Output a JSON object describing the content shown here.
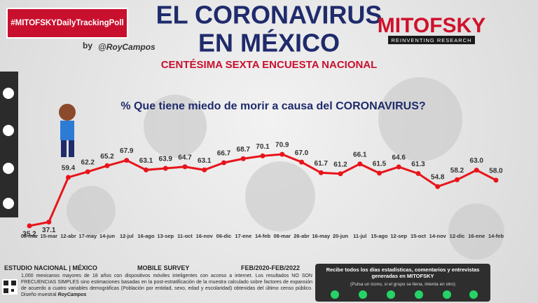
{
  "header": {
    "hashtag": "#MITOFSKYDailyTrackingPoll",
    "by": "by",
    "author": "@RoyCampos",
    "title_line1": "EL CORONAVIRUS",
    "title_line2": "EN MÉXICO",
    "subtitle": "CENTÉSIMA SEXTA ENCUESTA NACIONAL",
    "brand": "MITOFSKY",
    "brand_tagline": "REINVENTING RESEARCH"
  },
  "chart_data": {
    "type": "line",
    "title": "% Que tiene miedo de morir a causa del CORONAVIRUS?",
    "categories": [
      "08-mar",
      "15-mar",
      "12-abr",
      "17-may",
      "14-jun",
      "12-jul",
      "16-ago",
      "13-sep",
      "11-oct",
      "16-nov",
      "06-dic",
      "17-ene",
      "14-feb",
      "08-mar",
      "26-abr",
      "16-may",
      "20-jun",
      "11-jul",
      "15-ago",
      "12-sep",
      "15-oct",
      "14-nov",
      "12-dic",
      "16-ene",
      "14-feb"
    ],
    "values": [
      35.2,
      37.1,
      59.4,
      62.2,
      65.2,
      67.9,
      63.1,
      63.9,
      64.7,
      63.1,
      66.7,
      68.7,
      70.1,
      70.9,
      67.0,
      61.7,
      61.2,
      66.1,
      61.5,
      64.6,
      61.3,
      54.8,
      58.2,
      63.0,
      58.0
    ],
    "value_labels": [
      "35.2",
      "37.1",
      "59.4",
      "62.2",
      "65.2",
      "67.9",
      "63.1",
      "63.9",
      "64.7",
      "63.1",
      "66.7",
      "68.7",
      "70.1",
      "70.9",
      "67.0",
      "61.7",
      "61.2",
      "66.1",
      "61.5",
      "64.6",
      "61.3",
      "54.8",
      "58.2",
      "63.0",
      "58.0"
    ],
    "color": "#e8141b"
  },
  "footer": {
    "study": "ESTUDIO NACIONAL | MÉXICO",
    "mode": "MOBILE SURVEY",
    "period": "FEB/2020-FEB/2022",
    "method": "1,000 mexicanos mayores de 18 años con dispositivos móviles inteligentes con acceso a internet. Los resultados NO SON FRECUENCIAS SIMPLES sino estimaciones basadas en la post-estratificación de la muestra calculado sobre factores de expansión de acuerdo a cuatro variables demográficas (Población por entidad, sexo, edad y escolaridad) obtenidas del último censo público. Diseño muestral",
    "signature": "RoyCampos",
    "promo": "Recibe todos los días estadísticas, comentarios y entrevistas generadas en MITOFSKY",
    "promo_note": "(Pulsa un icono, si el grupo se llena, intenta en otro)"
  }
}
